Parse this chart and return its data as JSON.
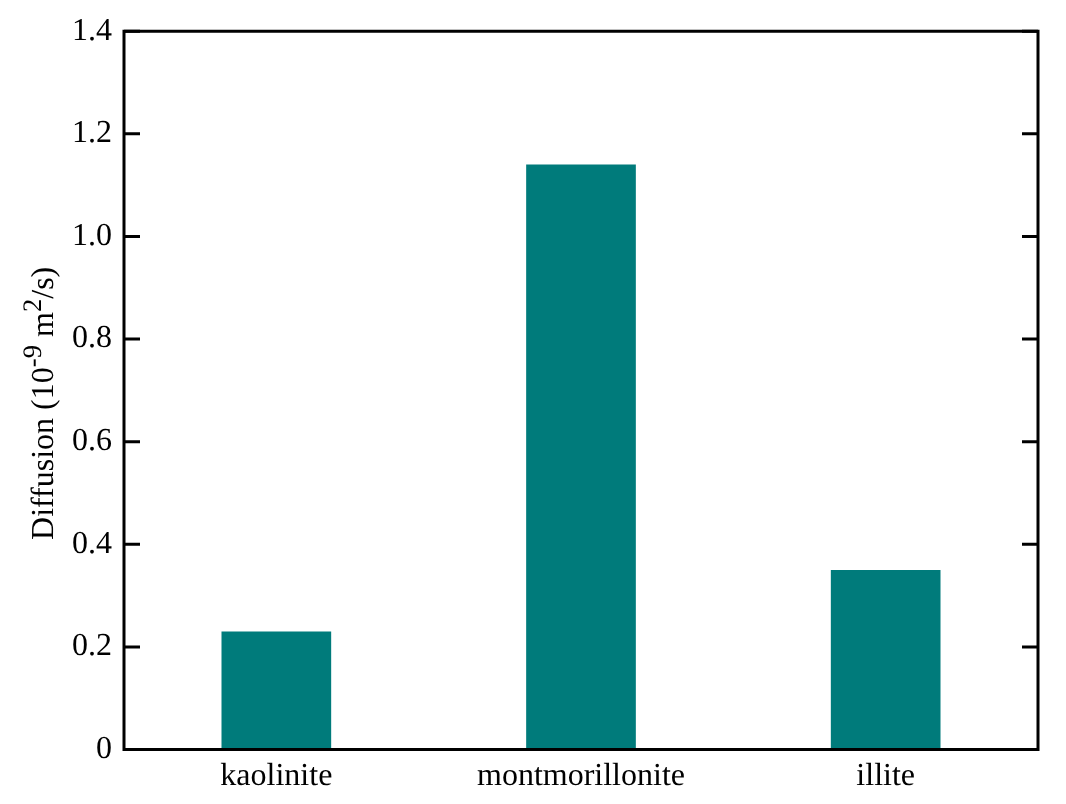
{
  "chart_data": {
    "type": "bar",
    "ylabel": "Diffusion (10$^{-9}$ m$^{2}$/s)",
    "categories": [
      "kaolinite",
      "montmorillonite",
      "illite"
    ],
    "values": [
      0.23,
      1.14,
      0.35
    ],
    "color": "#007b7b",
    "ylim": [
      0,
      1.4
    ],
    "yticks": [
      {
        "value": 0,
        "label": "0"
      },
      0.2,
      0.4,
      0.6,
      0.8,
      {
        "value": 1,
        "label": "1.0"
      },
      1.2,
      1.4
    ],
    "grid": false,
    "legend": false
  }
}
